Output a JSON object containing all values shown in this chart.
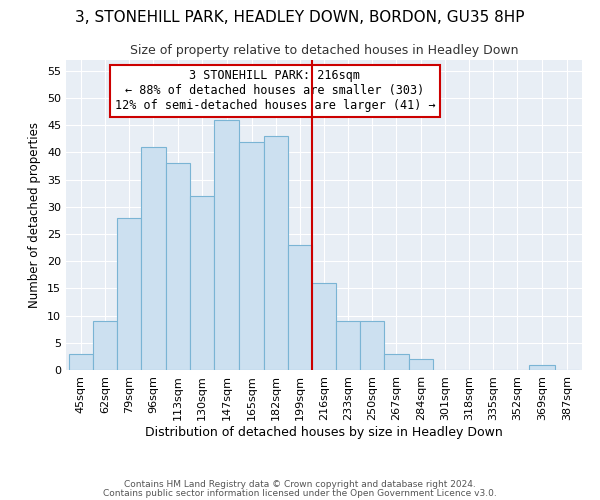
{
  "title": "3, STONEHILL PARK, HEADLEY DOWN, BORDON, GU35 8HP",
  "subtitle": "Size of property relative to detached houses in Headley Down",
  "xlabel": "Distribution of detached houses by size in Headley Down",
  "ylabel": "Number of detached properties",
  "bin_labels": [
    "45sqm",
    "62sqm",
    "79sqm",
    "96sqm",
    "113sqm",
    "130sqm",
    "147sqm",
    "165sqm",
    "182sqm",
    "199sqm",
    "216sqm",
    "233sqm",
    "250sqm",
    "267sqm",
    "284sqm",
    "301sqm",
    "318sqm",
    "335sqm",
    "352sqm",
    "369sqm",
    "387sqm"
  ],
  "bin_edges": [
    45,
    62,
    79,
    96,
    113,
    130,
    147,
    165,
    182,
    199,
    216,
    233,
    250,
    267,
    284,
    301,
    318,
    335,
    352,
    369,
    387,
    404
  ],
  "bar_heights": [
    3,
    9,
    28,
    41,
    38,
    32,
    46,
    42,
    43,
    23,
    16,
    9,
    9,
    3,
    2,
    0,
    0,
    0,
    0,
    1,
    0
  ],
  "bar_color": "#cce0f0",
  "bar_edgecolor": "#7ab4d4",
  "marker_value": 216,
  "marker_color": "#cc0000",
  "ylim": [
    0,
    57
  ],
  "yticks": [
    0,
    5,
    10,
    15,
    20,
    25,
    30,
    35,
    40,
    45,
    50,
    55
  ],
  "annotation_title": "3 STONEHILL PARK: 216sqm",
  "annotation_line1": "← 88% of detached houses are smaller (303)",
  "annotation_line2": "12% of semi-detached houses are larger (41) →",
  "footer1": "Contains HM Land Registry data © Crown copyright and database right 2024.",
  "footer2": "Contains public sector information licensed under the Open Government Licence v3.0.",
  "title_fontsize": 11,
  "subtitle_fontsize": 9,
  "ylabel_fontsize": 8.5,
  "xlabel_fontsize": 9,
  "tick_fontsize": 8,
  "annotation_fontsize": 8.5,
  "footer_fontsize": 6.5
}
